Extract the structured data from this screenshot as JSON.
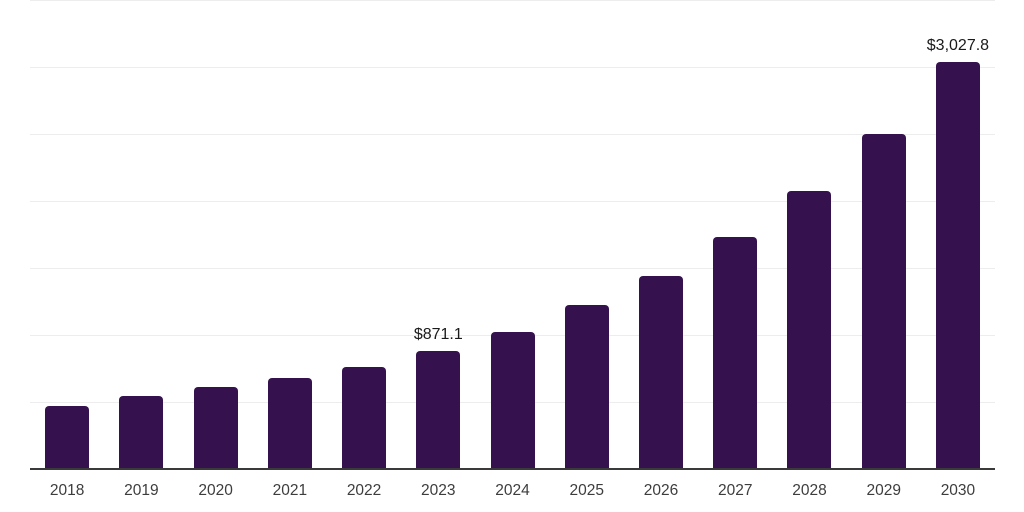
{
  "chart_data": {
    "type": "bar",
    "title": "",
    "xlabel": "",
    "ylabel": "",
    "categories": [
      "2018",
      "2019",
      "2020",
      "2021",
      "2022",
      "2023",
      "2024",
      "2025",
      "2026",
      "2027",
      "2028",
      "2029",
      "2030"
    ],
    "values": [
      462,
      537,
      605,
      672,
      752,
      871.1,
      1015,
      1213,
      1433,
      1724,
      2066,
      2493,
      3027.8
    ],
    "point_labels": [
      "",
      "",
      "",
      "",
      "",
      "$871.1",
      "",
      "",
      "",
      "",
      "",
      "",
      "$3,027.8"
    ],
    "ylim": [
      0,
      3500
    ],
    "gridline_step": 500,
    "grid": "horizontal-only",
    "legend": "none",
    "y_tick_labels_visible": false,
    "bar_color": "#35124E"
  },
  "colors": {
    "bar": "#35124E",
    "axis_line": "#3a3a3a",
    "gridline": "#ededed",
    "value_label": "#1a1a1a",
    "tick_label": "#3d3d3d",
    "background": "#ffffff"
  }
}
